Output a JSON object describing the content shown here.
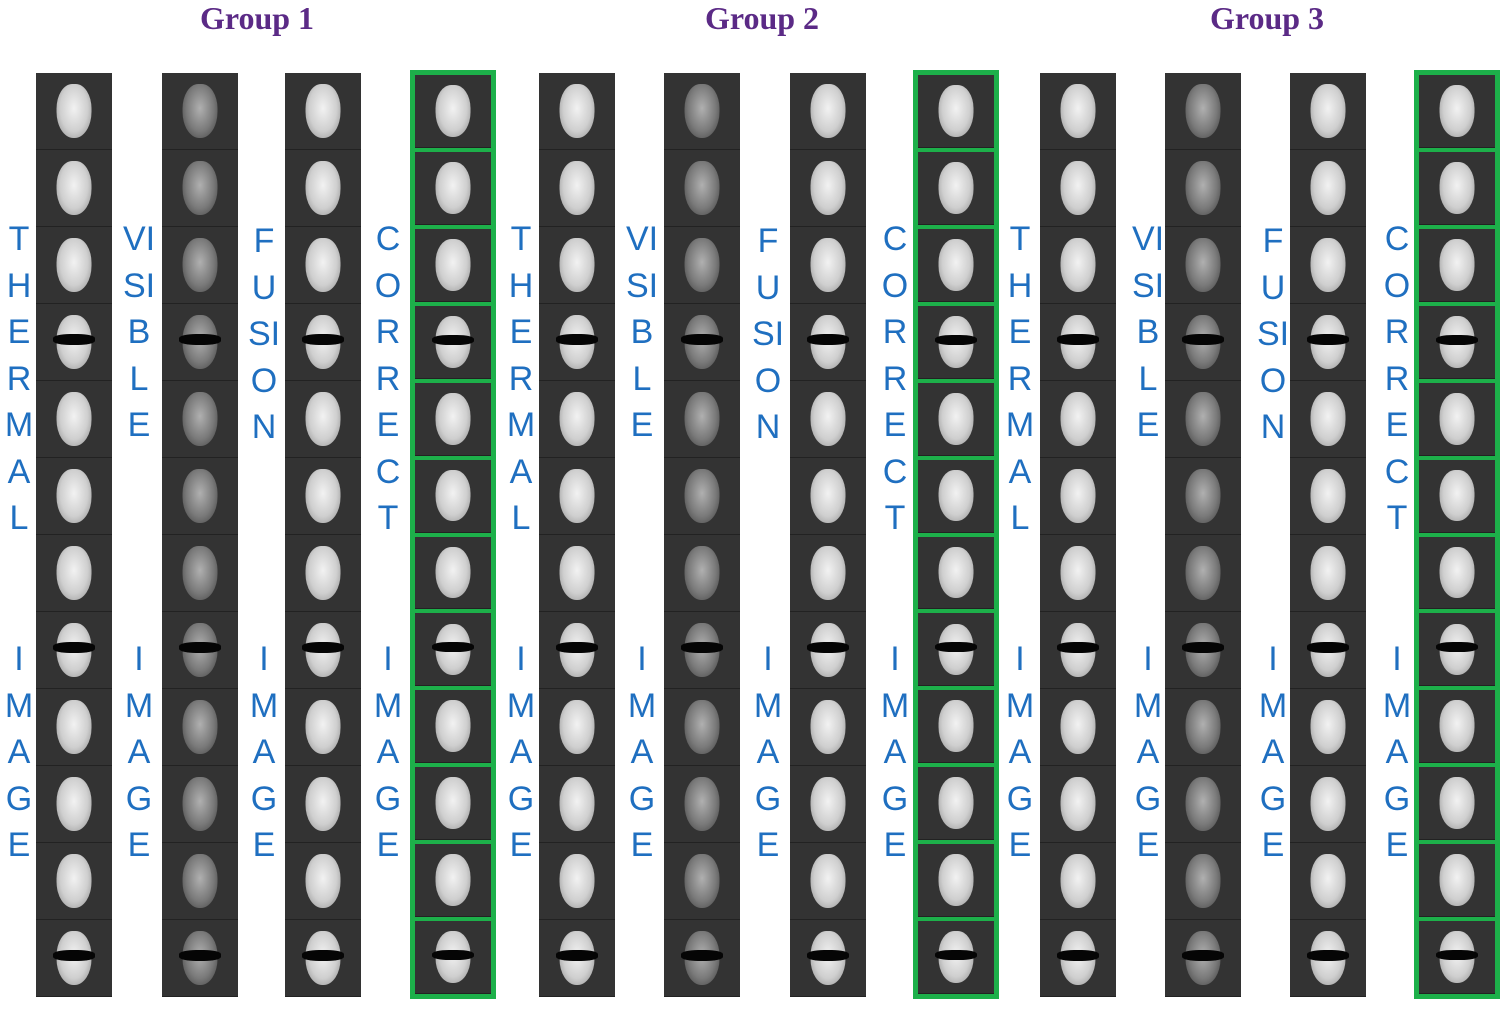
{
  "groups": [
    {
      "title": "Group 1",
      "columns": [
        "THERMAL",
        "VISIBLE",
        "FUSION",
        "CORRECT"
      ]
    },
    {
      "title": "Group 2",
      "columns": [
        "THERMAL",
        "VISIBLE",
        "FUSION",
        "CORRECT"
      ]
    },
    {
      "title": "Group 3",
      "columns": [
        "THERMAL",
        "VISIBLE",
        "FUSION",
        "CORRECT"
      ]
    }
  ],
  "image_word": "IMAGE",
  "rows_per_column": 12,
  "sunglasses_rows": [
    4,
    8,
    12
  ],
  "colors": {
    "title": "#5b2a86",
    "label": "#1f6fc0",
    "correct_border": "#1db04a"
  }
}
